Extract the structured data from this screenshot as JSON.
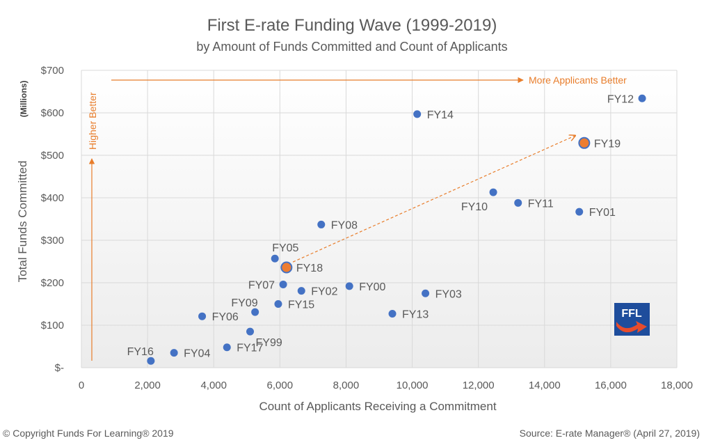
{
  "chart_data": {
    "type": "scatter",
    "title": "First E-rate Funding Wave  (1999-2019)",
    "subtitle": "by Amount of Funds Committed  and Count of Applicants",
    "xlabel": "Count of Applicants Receiving a Commitment",
    "ylabel": "Total Funds Committed",
    "ylabel_unit": "(Millions)",
    "xlim": [
      0,
      18000
    ],
    "ylim": [
      0,
      700
    ],
    "x_ticks": [
      {
        "value": 0,
        "label": "0"
      },
      {
        "value": 2000,
        "label": "2,000"
      },
      {
        "value": 4000,
        "label": "4,000"
      },
      {
        "value": 6000,
        "label": "6,000"
      },
      {
        "value": 8000,
        "label": "8,000"
      },
      {
        "value": 10000,
        "label": "10,000"
      },
      {
        "value": 12000,
        "label": "12,000"
      },
      {
        "value": 14000,
        "label": "14,000"
      },
      {
        "value": 16000,
        "label": "16,000"
      },
      {
        "value": 18000,
        "label": "18,000"
      }
    ],
    "y_ticks": [
      {
        "value": 0,
        "label": "$-"
      },
      {
        "value": 100,
        "label": "$100"
      },
      {
        "value": 200,
        "label": "$200"
      },
      {
        "value": 300,
        "label": "$300"
      },
      {
        "value": 400,
        "label": "$400"
      },
      {
        "value": 500,
        "label": "$500"
      },
      {
        "value": 600,
        "label": "$600"
      },
      {
        "value": 700,
        "label": "$700"
      }
    ],
    "grid": true,
    "points": [
      {
        "label": "FY99",
        "x": 5100,
        "y": 85,
        "label_pos": "below-right"
      },
      {
        "label": "FY00",
        "x": 8100,
        "y": 192,
        "label_pos": "right"
      },
      {
        "label": "FY01",
        "x": 15050,
        "y": 367,
        "label_pos": "right"
      },
      {
        "label": "FY02",
        "x": 6650,
        "y": 181,
        "label_pos": "right"
      },
      {
        "label": "FY03",
        "x": 10400,
        "y": 175,
        "label_pos": "right"
      },
      {
        "label": "FY04",
        "x": 2800,
        "y": 35,
        "label_pos": "right"
      },
      {
        "label": "FY05",
        "x": 5850,
        "y": 257,
        "label_pos": "above-right"
      },
      {
        "label": "FY06",
        "x": 3650,
        "y": 121,
        "label_pos": "right"
      },
      {
        "label": "FY07",
        "x": 6100,
        "y": 196,
        "label_pos": "left"
      },
      {
        "label": "FY08",
        "x": 7250,
        "y": 337,
        "label_pos": "right"
      },
      {
        "label": "FY09",
        "x": 5250,
        "y": 131,
        "label_pos": "above-left"
      },
      {
        "label": "FY10",
        "x": 12450,
        "y": 413,
        "label_pos": "below-left"
      },
      {
        "label": "FY11",
        "x": 13200,
        "y": 388,
        "label_pos": "right"
      },
      {
        "label": "FY12",
        "x": 16950,
        "y": 634,
        "label_pos": "left"
      },
      {
        "label": "FY13",
        "x": 9400,
        "y": 127,
        "label_pos": "right"
      },
      {
        "label": "FY14",
        "x": 10150,
        "y": 597,
        "label_pos": "right"
      },
      {
        "label": "FY15",
        "x": 5950,
        "y": 150,
        "label_pos": "right"
      },
      {
        "label": "FY16",
        "x": 2100,
        "y": 16,
        "label_pos": "above-left"
      },
      {
        "label": "FY17",
        "x": 4400,
        "y": 48,
        "label_pos": "right"
      },
      {
        "label": "FY18",
        "x": 6200,
        "y": 236,
        "label_pos": "right",
        "highlight": true
      },
      {
        "label": "FY19",
        "x": 15200,
        "y": 529,
        "label_pos": "right",
        "highlight": true
      }
    ],
    "trend_arrow": {
      "from_label": "FY18",
      "to_label": "FY19"
    },
    "annotations": {
      "more_applicants": "More Applicants Better",
      "higher_better": "Higher Better"
    },
    "colors": {
      "point": "#4472c4",
      "highlight": "#ed7d31",
      "annotation": "#e87d2b",
      "grid": "#d9d9d9"
    }
  },
  "logo": {
    "text": "FFL"
  },
  "footer": {
    "copyright": "© Copyright Funds For Learning® 2019",
    "source": "Source: E-rate Manager® (April 27, 2019)"
  }
}
